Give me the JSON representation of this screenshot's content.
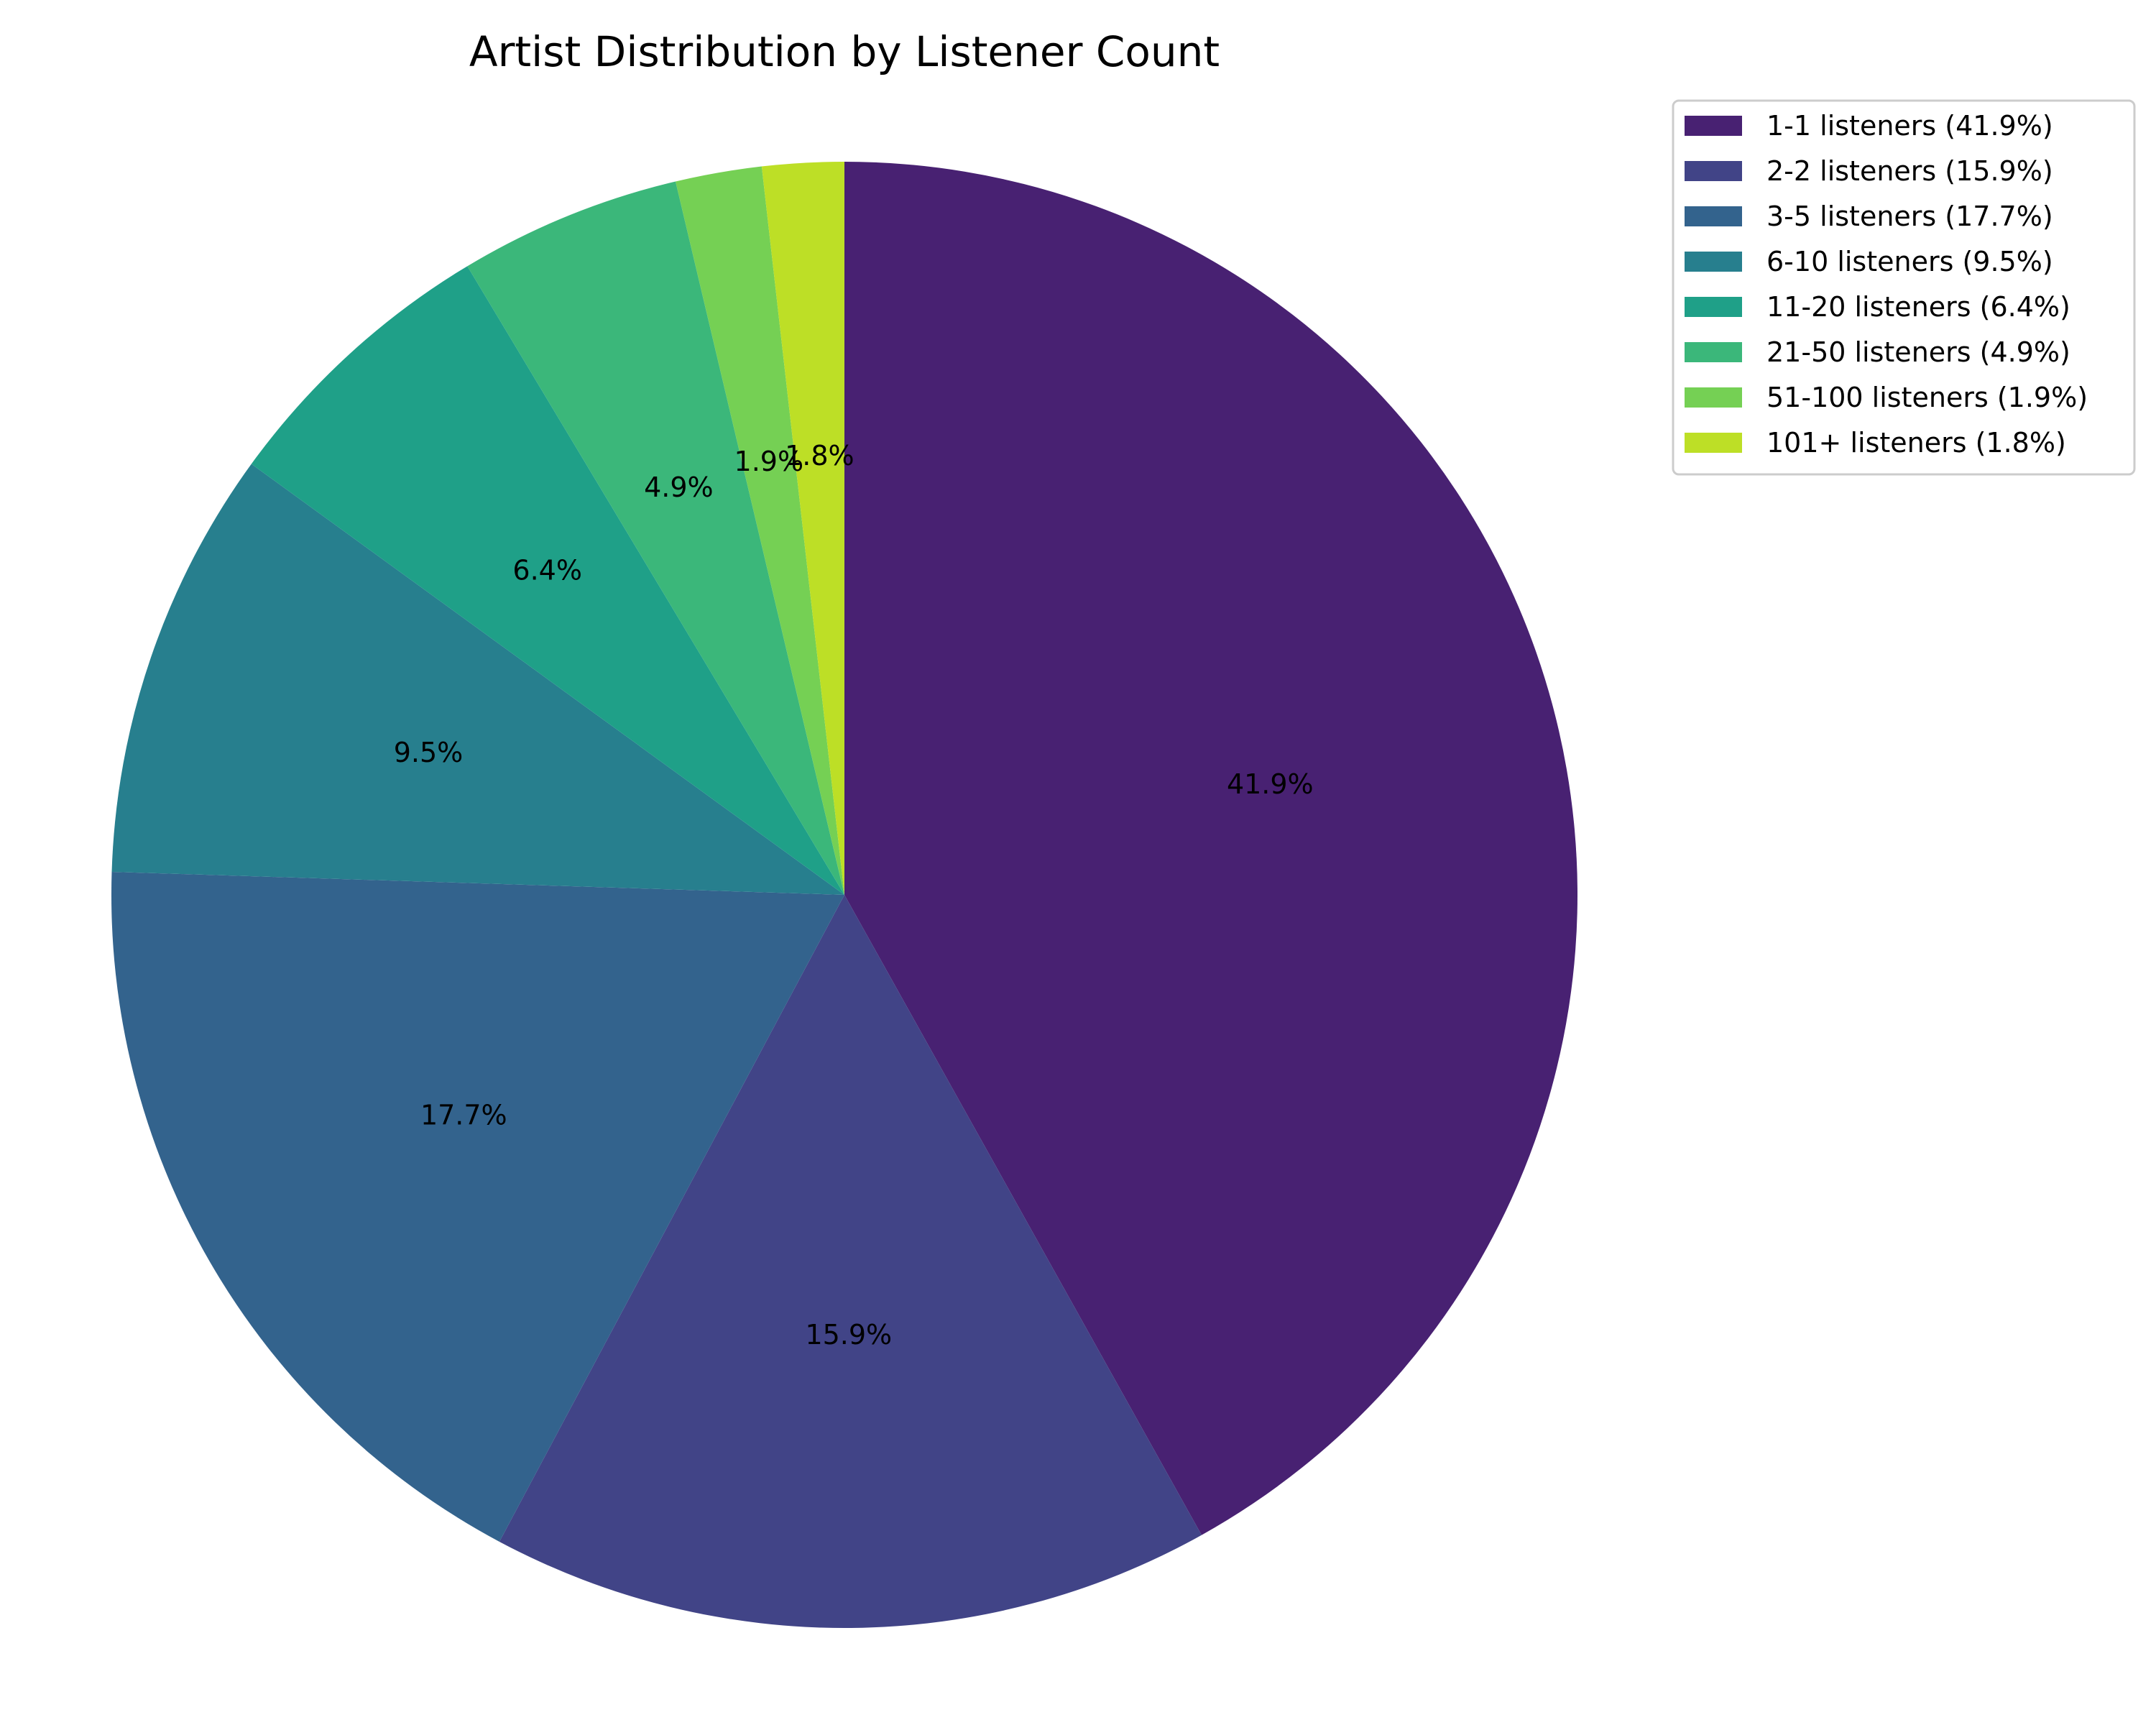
{
  "chart_data": {
    "type": "pie",
    "title": "Artist Distribution by Listener Count",
    "start_angle_deg": 90,
    "direction": "clockwise",
    "legend_position": "upper-right, outside plot",
    "slices": [
      {
        "label": "1-1 listeners (41.9%)",
        "value": 41.9,
        "pct_label": "41.9%",
        "color": "#482172"
      },
      {
        "label": "2-2 listeners (15.9%)",
        "value": 15.9,
        "pct_label": "15.9%",
        "color": "#414487"
      },
      {
        "label": "3-5 listeners (17.7%)",
        "value": 17.7,
        "pct_label": "17.7%",
        "color": "#33638d"
      },
      {
        "label": "6-10 listeners (9.5%)",
        "value": 9.5,
        "pct_label": "9.5%",
        "color": "#277f8e"
      },
      {
        "label": "11-20 listeners (6.4%)",
        "value": 6.4,
        "pct_label": "6.4%",
        "color": "#1fa088"
      },
      {
        "label": "21-50 listeners (4.9%)",
        "value": 4.9,
        "pct_label": "4.9%",
        "color": "#3bb77a"
      },
      {
        "label": "51-100 listeners (1.9%)",
        "value": 1.9,
        "pct_label": "1.9%",
        "color": "#75d054"
      },
      {
        "label": "101+ listeners (1.8%)",
        "value": 1.8,
        "pct_label": "1.8%",
        "color": "#bddf26"
      }
    ]
  }
}
